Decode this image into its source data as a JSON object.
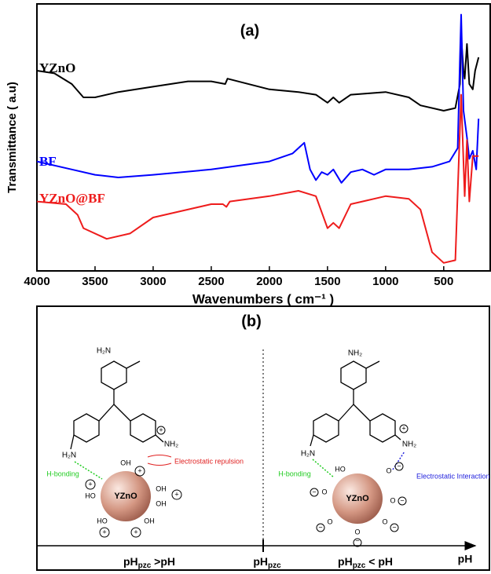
{
  "chart_data": {
    "type": "line",
    "title": "(a)",
    "x_label": "Wavenumbers ( cm⁻¹ )",
    "y_label": "Transmittance ( a.u)",
    "xlim": [
      4000,
      100
    ],
    "xticks": [
      4000,
      3500,
      3000,
      2500,
      2000,
      1500,
      1000,
      500
    ],
    "ylim": [
      0,
      100
    ],
    "series": [
      {
        "name": "YZnO",
        "color": "#000000",
        "x": [
          4000,
          3850,
          3700,
          3600,
          3500,
          3300,
          3000,
          2700,
          2500,
          2380,
          2360,
          2000,
          1750,
          1600,
          1500,
          1450,
          1400,
          1300,
          1000,
          800,
          700,
          500,
          400,
          360,
          350,
          330,
          320,
          300,
          280,
          250,
          230,
          200
        ],
        "values": [
          75,
          74,
          70,
          65,
          65,
          67,
          69,
          71,
          71,
          70,
          72,
          68,
          67,
          66,
          63,
          65,
          63,
          66,
          67,
          65,
          62,
          60,
          61,
          70,
          88,
          75,
          72,
          85,
          70,
          68,
          75,
          80
        ]
      },
      {
        "name": "BF",
        "color": "#0000ff",
        "x": [
          4000,
          3700,
          3500,
          3300,
          3000,
          2500,
          2000,
          1800,
          1750,
          1700,
          1650,
          1600,
          1550,
          1500,
          1450,
          1380,
          1300,
          1200,
          1100,
          1000,
          800,
          600,
          450,
          380,
          360,
          350,
          330,
          300,
          280,
          250,
          220,
          200
        ],
        "values": [
          41,
          38,
          36,
          35,
          36,
          38,
          41,
          44,
          46,
          48,
          38,
          34,
          37,
          36,
          38,
          33,
          37,
          38,
          36,
          38,
          38,
          39,
          41,
          46,
          80,
          96,
          60,
          50,
          42,
          45,
          38,
          57
        ]
      },
      {
        "name": "YZnO@BF",
        "color": "#ee1c1c",
        "x": [
          4000,
          3750,
          3650,
          3600,
          3400,
          3200,
          3000,
          2500,
          2400,
          2370,
          2340,
          2000,
          1750,
          1600,
          1500,
          1450,
          1400,
          1300,
          1200,
          1000,
          800,
          700,
          600,
          500,
          400,
          370,
          350,
          320,
          300,
          280,
          250,
          200
        ],
        "values": [
          26,
          25,
          21,
          16,
          12,
          14,
          20,
          25,
          25,
          24,
          26,
          28,
          30,
          28,
          16,
          18,
          16,
          25,
          26,
          28,
          27,
          23,
          7,
          3,
          4,
          42,
          66,
          28,
          49,
          26,
          43,
          43
        ]
      }
    ]
  },
  "diagram": {
    "title": "(b)",
    "left": {
      "top_amine": "H₂N",
      "left_amine": "H₂N",
      "right_amine": "NH₂",
      "h_bond": "H-bonding",
      "interaction": "Electrostatic repulsion",
      "core": "YZnO",
      "groups": [
        "OH",
        "HO",
        "OH",
        "OH",
        "HO",
        "OH"
      ]
    },
    "right": {
      "top_amine": "NH₂",
      "left_amine": "H₂N",
      "right_amine": "NH₂",
      "h_bond": "H-bonding",
      "interaction": "Electrostatic Interaction",
      "core": "YZnO",
      "groups": [
        "HO",
        "O",
        "O",
        "O",
        "O",
        "O",
        "O"
      ]
    },
    "axis": {
      "left": {
        "text": "pH",
        "sub": "pzc",
        "after": " >pH"
      },
      "middle": {
        "text": "pH",
        "sub": "pzc"
      },
      "right": {
        "text": "pH",
        "sub": "pzc",
        "after": " < pH"
      },
      "end": "pH"
    }
  }
}
